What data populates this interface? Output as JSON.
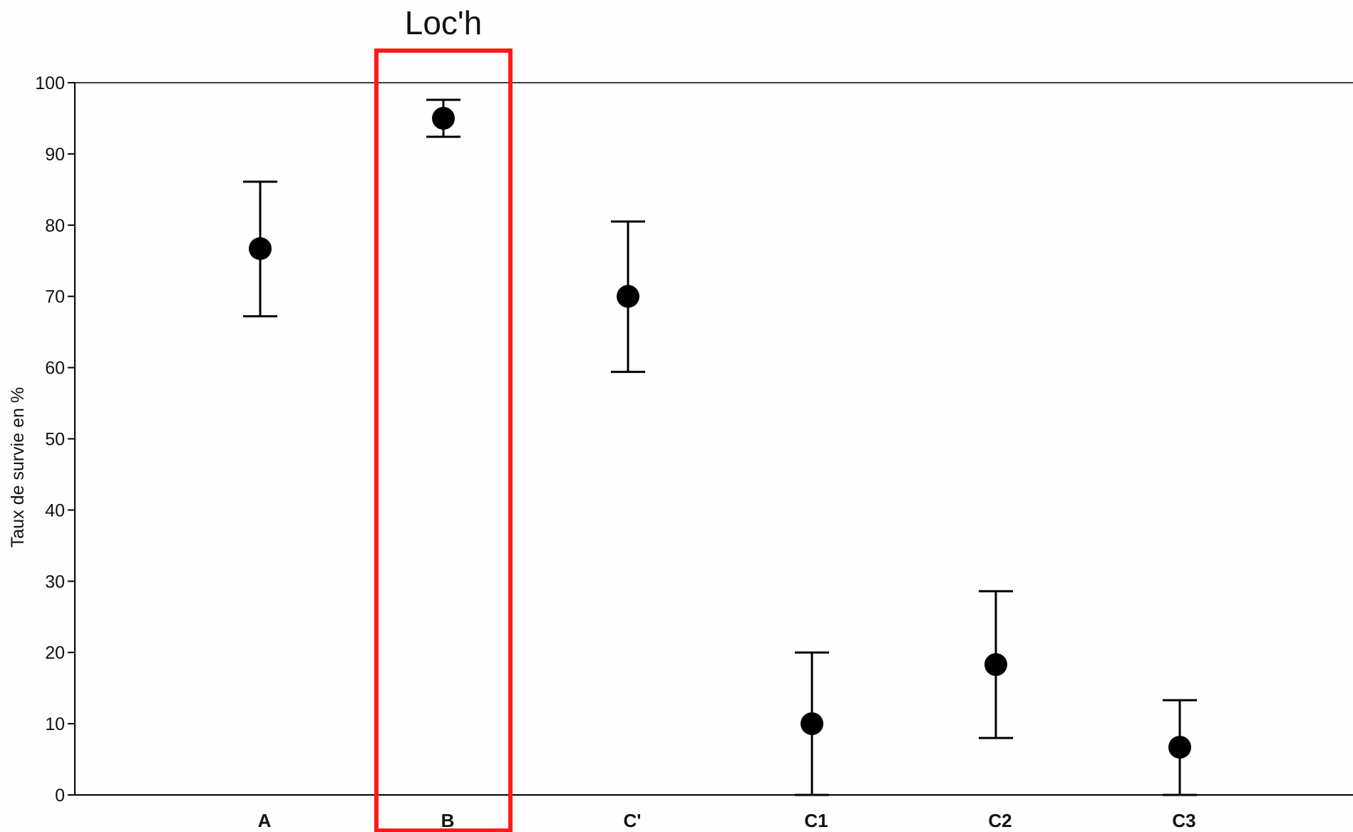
{
  "chart_data": {
    "type": "scatter",
    "title": "",
    "xlabel": "",
    "ylabel": "Taux de survie en %",
    "categories": [
      "A",
      "B",
      "C'",
      "C1",
      "C2",
      "C3"
    ],
    "series": [
      {
        "values": [
          76.7,
          95.0,
          70.0,
          10.0,
          18.3,
          6.7
        ],
        "error_low": [
          67.2,
          92.4,
          59.4,
          0.0,
          8.0,
          0.0
        ],
        "error_high": [
          86.1,
          97.6,
          80.5,
          20.0,
          28.6,
          13.3
        ]
      }
    ],
    "ylim": [
      0,
      100
    ],
    "yticks": [
      0,
      10,
      20,
      30,
      40,
      50,
      60,
      70,
      80,
      90,
      100
    ],
    "grid": false,
    "highlight": {
      "category": "B",
      "label": "Loc'h",
      "color": "#ff1a1a"
    },
    "colors": {
      "marker": "#000000",
      "axis": "#000000"
    }
  }
}
